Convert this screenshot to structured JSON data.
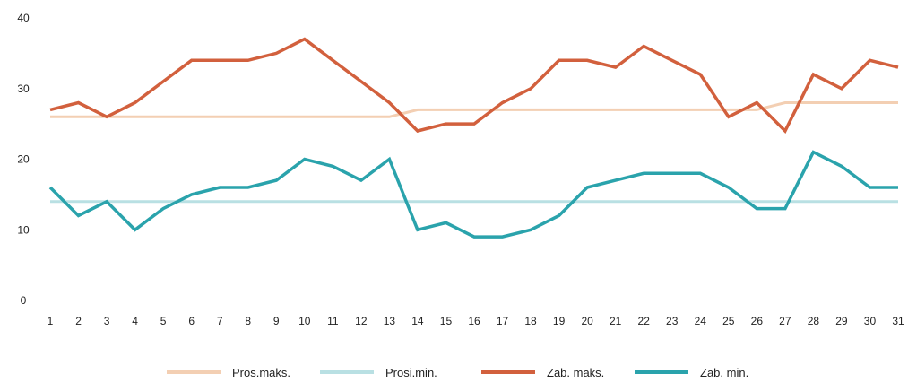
{
  "chart_data": {
    "type": "line",
    "title": "",
    "xlabel": "",
    "ylabel": "",
    "x": [
      1,
      2,
      3,
      4,
      5,
      6,
      7,
      8,
      9,
      10,
      11,
      12,
      13,
      14,
      15,
      16,
      17,
      18,
      19,
      20,
      21,
      22,
      23,
      24,
      25,
      26,
      27,
      28,
      29,
      30,
      31
    ],
    "xticks": [
      "1",
      "2",
      "3",
      "4",
      "5",
      "6",
      "7",
      "8",
      "9",
      "10",
      "11",
      "12",
      "13",
      "14",
      "15",
      "16",
      "17",
      "18",
      "19",
      "20",
      "21",
      "22",
      "23",
      "24",
      "25",
      "26",
      "27",
      "28",
      "29",
      "30",
      "31"
    ],
    "ylim": [
      0,
      40
    ],
    "yticks": [
      "0",
      "10",
      "20",
      "30",
      "40"
    ],
    "grid": false,
    "legend_position": "bottom",
    "series": [
      {
        "name": "Pros.maks.",
        "color": "#f3cfb3",
        "values": [
          26,
          26,
          26,
          26,
          26,
          26,
          26,
          26,
          26,
          26,
          26,
          26,
          26,
          27,
          27,
          27,
          27,
          27,
          27,
          27,
          27,
          27,
          27,
          27,
          27,
          27,
          28,
          28,
          28,
          28,
          28
        ]
      },
      {
        "name": "Prosi.min.",
        "color": "#b9e0e3",
        "values": [
          14,
          14,
          14,
          14,
          14,
          14,
          14,
          14,
          14,
          14,
          14,
          14,
          14,
          14,
          14,
          14,
          14,
          14,
          14,
          14,
          14,
          14,
          14,
          14,
          14,
          14,
          14,
          14,
          14,
          14,
          14
        ]
      },
      {
        "name": "Zab. maks.",
        "color": "#d2603d",
        "values": [
          27,
          28,
          26,
          28,
          31,
          34,
          34,
          34,
          35,
          37,
          34,
          31,
          28,
          24,
          25,
          25,
          28,
          30,
          34,
          34,
          33,
          36,
          34,
          32,
          26,
          28,
          24,
          32,
          30,
          34,
          33
        ]
      },
      {
        "name": "Zab. min.",
        "color": "#2aa3ac",
        "values": [
          16,
          12,
          14,
          10,
          13,
          15,
          16,
          16,
          17,
          20,
          19,
          17,
          20,
          10,
          11,
          9,
          9,
          10,
          12,
          16,
          17,
          18,
          18,
          18,
          16,
          13,
          13,
          21,
          19,
          16,
          16
        ]
      }
    ]
  }
}
